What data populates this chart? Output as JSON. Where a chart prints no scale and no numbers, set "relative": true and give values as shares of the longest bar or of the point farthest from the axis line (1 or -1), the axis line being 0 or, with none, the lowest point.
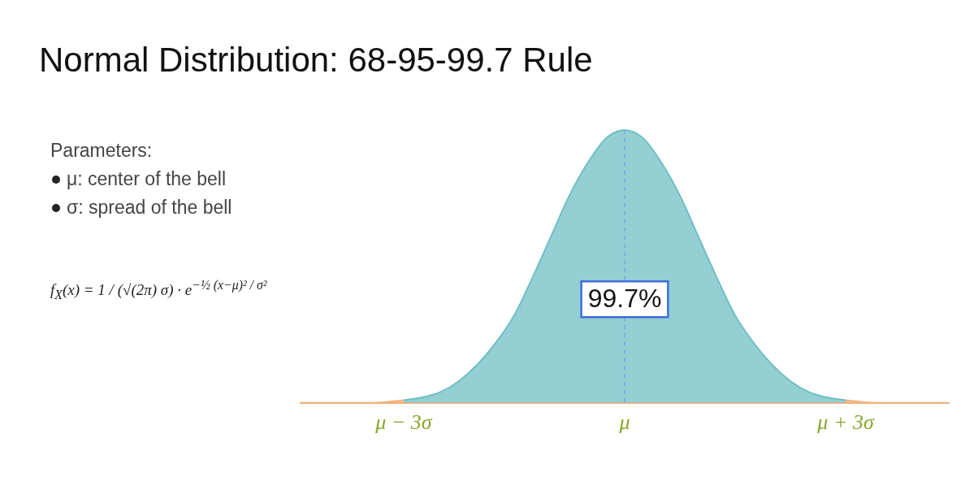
{
  "chart_data": {
    "type": "area",
    "title": "Normal Distribution: 68-95-99.7 Rule",
    "relative": true,
    "xlim": [
      -4.4,
      4.4
    ],
    "xticks": [
      {
        "value": -3,
        "label": "μ − 3σ"
      },
      {
        "value": 0,
        "label": "μ"
      },
      {
        "value": 3,
        "label": "μ + 3σ"
      }
    ],
    "series": [
      {
        "color": "#f2b27a",
        "x": [
          -4.4,
          -3.8,
          -3.4,
          -3,
          0,
          3,
          3.4,
          3.8,
          4.4
        ],
        "values": [
          0,
          0,
          0,
          0.01,
          null,
          0.01,
          0,
          0,
          0
        ]
      },
      {
        "color": "#6fbfc4",
        "x": [
          -3,
          -2.75,
          -2.5,
          -2.25,
          -2,
          -1.75,
          -1.5,
          -1.25,
          -1,
          -0.75,
          -0.5,
          -0.25,
          0,
          0.25,
          0.5,
          0.75,
          1,
          1.25,
          1.5,
          1.75,
          2,
          2.25,
          2.5,
          2.75,
          3
        ],
        "values": [
          0.01,
          0.02,
          0.04,
          0.08,
          0.14,
          0.22,
          0.32,
          0.46,
          0.61,
          0.76,
          0.88,
          0.97,
          1,
          0.97,
          0.88,
          0.76,
          0.61,
          0.46,
          0.32,
          0.22,
          0.14,
          0.08,
          0.04,
          0.02,
          0.01
        ]
      }
    ],
    "ref_lines": [
      {
        "axis": "x",
        "value": 0,
        "color": "#7aa6e6",
        "line_style": "dashed"
      }
    ],
    "annotations": [
      {
        "text": "99.7%",
        "x": 0,
        "y": 0.38
      },
      "Parameters:",
      "μ: center of the bell",
      "σ: spread of the bell",
      "f$_{X}$(x) = 1 / (√(2π) σ) · e$^{−½ (x−μ)² / σ²}$"
    ]
  }
}
